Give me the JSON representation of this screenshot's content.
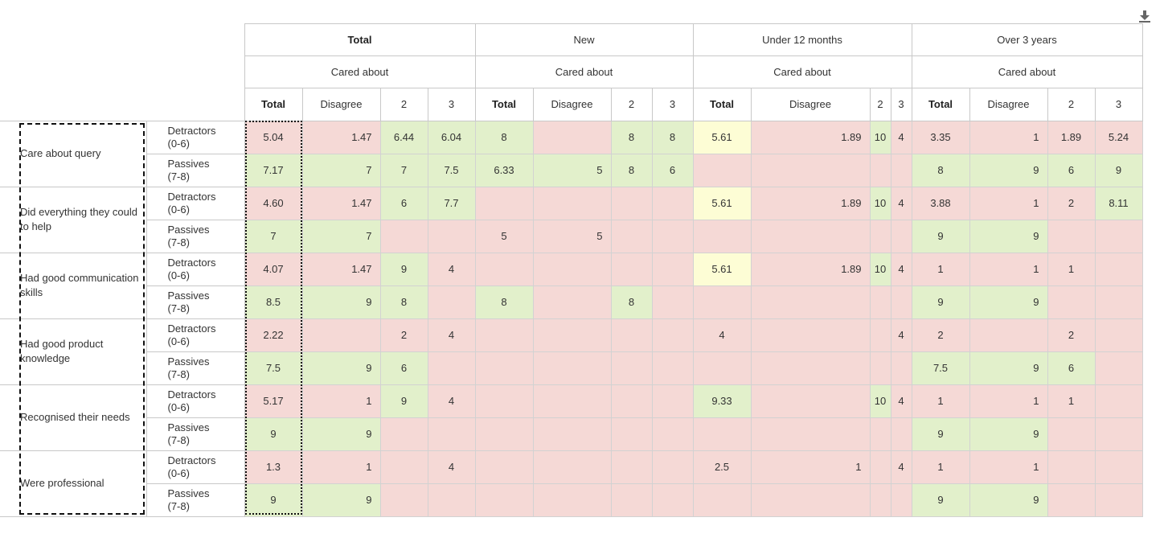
{
  "groups": [
    {
      "label": "Total",
      "sub": "Cared about"
    },
    {
      "label": "New",
      "sub": "Cared about"
    },
    {
      "label": "Under 12 months",
      "sub": "Cared about"
    },
    {
      "label": "Over 3 years",
      "sub": "Cared about"
    }
  ],
  "columns": [
    "Total",
    "Disagree",
    "2",
    "3"
  ],
  "types": {
    "detractors": "Detractors\n(0-6)",
    "passives": "Passives\n(7-8)"
  },
  "colors": {
    "red": "#f5d9d6",
    "green": "#e2f0cb",
    "yellow": "#fdfdd5"
  },
  "icons": {
    "download": "download-icon"
  },
  "categories": [
    {
      "label": "Care about query",
      "rows": [
        {
          "type": "detractors",
          "cells": [
            [
              "5.04",
              "r"
            ],
            [
              "1.47",
              "r"
            ],
            [
              "6.44",
              "g"
            ],
            [
              "6.04",
              "g"
            ],
            [
              "8",
              "g"
            ],
            [
              "",
              "r"
            ],
            [
              "8",
              "g"
            ],
            [
              "8",
              "g"
            ],
            [
              "5.61",
              "y"
            ],
            [
              "1.89",
              "r"
            ],
            [
              "10",
              "g"
            ],
            [
              "4",
              "r"
            ],
            [
              "3.35",
              "r"
            ],
            [
              "1",
              "r"
            ],
            [
              "1.89",
              "r"
            ],
            [
              "5.24",
              "r"
            ]
          ]
        },
        {
          "type": "passives",
          "cells": [
            [
              "7.17",
              "g"
            ],
            [
              "7",
              "g"
            ],
            [
              "7",
              "g"
            ],
            [
              "7.5",
              "g"
            ],
            [
              "6.33",
              "g"
            ],
            [
              "5",
              "g"
            ],
            [
              "8",
              "g"
            ],
            [
              "6",
              "g"
            ],
            [
              "",
              "r"
            ],
            [
              "",
              "r"
            ],
            [
              "",
              "r"
            ],
            [
              "",
              "r"
            ],
            [
              "8",
              "g"
            ],
            [
              "9",
              "g"
            ],
            [
              "6",
              "g"
            ],
            [
              "9",
              "g"
            ]
          ]
        }
      ]
    },
    {
      "label": "Did everything they could to help",
      "rows": [
        {
          "type": "detractors",
          "cells": [
            [
              "4.60",
              "r"
            ],
            [
              "1.47",
              "r"
            ],
            [
              "6",
              "g"
            ],
            [
              "7.7",
              "g"
            ],
            [
              "",
              "r"
            ],
            [
              "",
              "r"
            ],
            [
              "",
              "r"
            ],
            [
              "",
              "r"
            ],
            [
              "5.61",
              "y"
            ],
            [
              "1.89",
              "r"
            ],
            [
              "10",
              "g"
            ],
            [
              "4",
              "r"
            ],
            [
              "3.88",
              "r"
            ],
            [
              "1",
              "r"
            ],
            [
              "2",
              "r"
            ],
            [
              "8.11",
              "g"
            ]
          ]
        },
        {
          "type": "passives",
          "cells": [
            [
              "7",
              "g"
            ],
            [
              "7",
              "g"
            ],
            [
              "",
              "r"
            ],
            [
              "",
              "r"
            ],
            [
              "5",
              "r"
            ],
            [
              "5",
              "r"
            ],
            [
              "",
              "r"
            ],
            [
              "",
              "r"
            ],
            [
              "",
              "r"
            ],
            [
              "",
              "r"
            ],
            [
              "",
              "r"
            ],
            [
              "",
              "r"
            ],
            [
              "9",
              "g"
            ],
            [
              "9",
              "g"
            ],
            [
              "",
              "r"
            ],
            [
              "",
              "r"
            ]
          ]
        }
      ]
    },
    {
      "label": "Had good communication skills",
      "rows": [
        {
          "type": "detractors",
          "cells": [
            [
              "4.07",
              "r"
            ],
            [
              "1.47",
              "r"
            ],
            [
              "9",
              "g"
            ],
            [
              "4",
              "r"
            ],
            [
              "",
              "r"
            ],
            [
              "",
              "r"
            ],
            [
              "",
              "r"
            ],
            [
              "",
              "r"
            ],
            [
              "5.61",
              "y"
            ],
            [
              "1.89",
              "r"
            ],
            [
              "10",
              "g"
            ],
            [
              "4",
              "r"
            ],
            [
              "1",
              "r"
            ],
            [
              "1",
              "r"
            ],
            [
              "1",
              "r"
            ],
            [
              "",
              "r"
            ]
          ]
        },
        {
          "type": "passives",
          "cells": [
            [
              "8.5",
              "g"
            ],
            [
              "9",
              "g"
            ],
            [
              "8",
              "g"
            ],
            [
              "",
              "r"
            ],
            [
              "8",
              "g"
            ],
            [
              "",
              "r"
            ],
            [
              "8",
              "g"
            ],
            [
              "",
              "r"
            ],
            [
              "",
              "r"
            ],
            [
              "",
              "r"
            ],
            [
              "",
              "r"
            ],
            [
              "",
              "r"
            ],
            [
              "9",
              "g"
            ],
            [
              "9",
              "g"
            ],
            [
              "",
              "r"
            ],
            [
              "",
              "r"
            ]
          ]
        }
      ]
    },
    {
      "label": "Had good product knowledge",
      "rows": [
        {
          "type": "detractors",
          "cells": [
            [
              "2.22",
              "r"
            ],
            [
              "",
              "r"
            ],
            [
              "2",
              "r"
            ],
            [
              "4",
              "r"
            ],
            [
              "",
              "r"
            ],
            [
              "",
              "r"
            ],
            [
              "",
              "r"
            ],
            [
              "",
              "r"
            ],
            [
              "4",
              "r"
            ],
            [
              "",
              "r"
            ],
            [
              "",
              "r"
            ],
            [
              "4",
              "r"
            ],
            [
              "2",
              "r"
            ],
            [
              "",
              "r"
            ],
            [
              "2",
              "r"
            ],
            [
              "",
              "r"
            ]
          ]
        },
        {
          "type": "passives",
          "cells": [
            [
              "7.5",
              "g"
            ],
            [
              "9",
              "g"
            ],
            [
              "6",
              "g"
            ],
            [
              "",
              "r"
            ],
            [
              "",
              "r"
            ],
            [
              "",
              "r"
            ],
            [
              "",
              "r"
            ],
            [
              "",
              "r"
            ],
            [
              "",
              "r"
            ],
            [
              "",
              "r"
            ],
            [
              "",
              "r"
            ],
            [
              "",
              "r"
            ],
            [
              "7.5",
              "g"
            ],
            [
              "9",
              "g"
            ],
            [
              "6",
              "g"
            ],
            [
              "",
              "r"
            ]
          ]
        }
      ]
    },
    {
      "label": "Recognised their needs",
      "rows": [
        {
          "type": "detractors",
          "cells": [
            [
              "5.17",
              "r"
            ],
            [
              "1",
              "r"
            ],
            [
              "9",
              "g"
            ],
            [
              "4",
              "r"
            ],
            [
              "",
              "r"
            ],
            [
              "",
              "r"
            ],
            [
              "",
              "r"
            ],
            [
              "",
              "r"
            ],
            [
              "9.33",
              "g"
            ],
            [
              "",
              "r"
            ],
            [
              "10",
              "g"
            ],
            [
              "4",
              "r"
            ],
            [
              "1",
              "r"
            ],
            [
              "1",
              "r"
            ],
            [
              "1",
              "r"
            ],
            [
              "",
              "r"
            ]
          ]
        },
        {
          "type": "passives",
          "cells": [
            [
              "9",
              "g"
            ],
            [
              "9",
              "g"
            ],
            [
              "",
              "r"
            ],
            [
              "",
              "r"
            ],
            [
              "",
              "r"
            ],
            [
              "",
              "r"
            ],
            [
              "",
              "r"
            ],
            [
              "",
              "r"
            ],
            [
              "",
              "r"
            ],
            [
              "",
              "r"
            ],
            [
              "",
              "r"
            ],
            [
              "",
              "r"
            ],
            [
              "9",
              "g"
            ],
            [
              "9",
              "g"
            ],
            [
              "",
              "r"
            ],
            [
              "",
              "r"
            ]
          ]
        }
      ]
    },
    {
      "label": "Were professional",
      "rows": [
        {
          "type": "detractors",
          "cells": [
            [
              "1.3",
              "r"
            ],
            [
              "1",
              "r"
            ],
            [
              "",
              "r"
            ],
            [
              "4",
              "r"
            ],
            [
              "",
              "r"
            ],
            [
              "",
              "r"
            ],
            [
              "",
              "r"
            ],
            [
              "",
              "r"
            ],
            [
              "2.5",
              "r"
            ],
            [
              "1",
              "r"
            ],
            [
              "",
              "r"
            ],
            [
              "4",
              "r"
            ],
            [
              "1",
              "r"
            ],
            [
              "1",
              "r"
            ],
            [
              "",
              "r"
            ],
            [
              "",
              "r"
            ]
          ]
        },
        {
          "type": "passives",
          "cells": [
            [
              "9",
              "g"
            ],
            [
              "9",
              "g"
            ],
            [
              "",
              "r"
            ],
            [
              "",
              "r"
            ],
            [
              "",
              "r"
            ],
            [
              "",
              "r"
            ],
            [
              "",
              "r"
            ],
            [
              "",
              "r"
            ],
            [
              "",
              "r"
            ],
            [
              "",
              "r"
            ],
            [
              "",
              "r"
            ],
            [
              "",
              "r"
            ],
            [
              "9",
              "g"
            ],
            [
              "9",
              "g"
            ],
            [
              "",
              "r"
            ],
            [
              "",
              "r"
            ]
          ]
        }
      ]
    }
  ]
}
